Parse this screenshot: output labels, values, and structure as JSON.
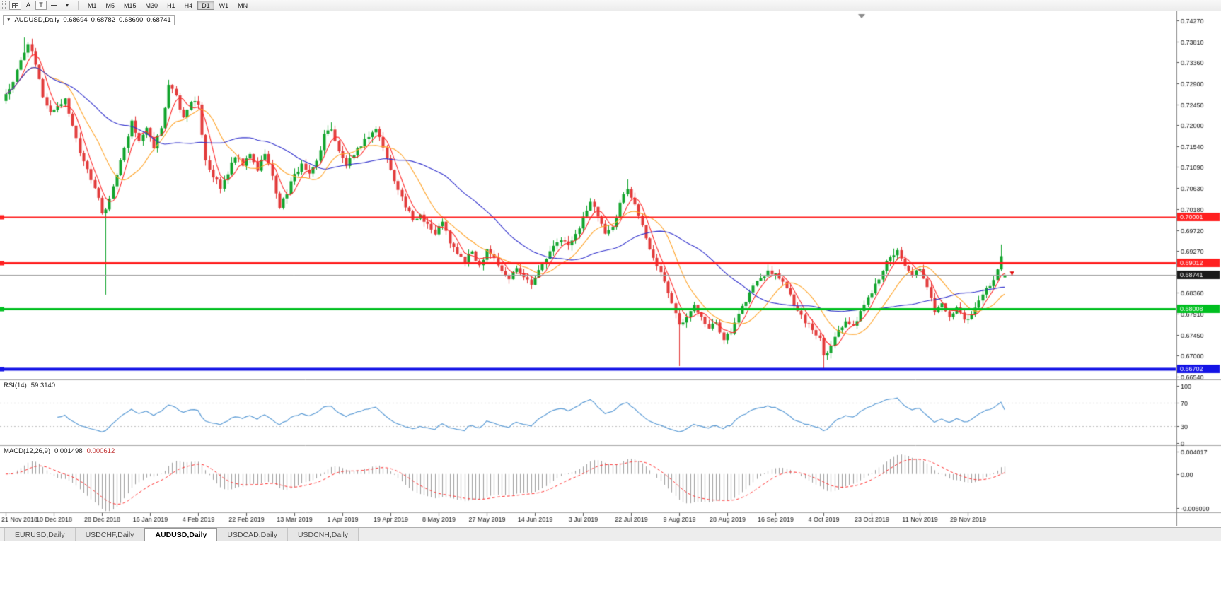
{
  "icons": {
    "caret_down": "▾",
    "dropdown_triangle": "▼"
  },
  "toolbar": {
    "a_label": "A",
    "t_label": "T",
    "timeframes": [
      "M1",
      "M5",
      "M15",
      "M30",
      "H1",
      "H4",
      "D1",
      "W1",
      "MN"
    ],
    "active_timeframe": "D1"
  },
  "header": {
    "symbol": "AUDUSD,Daily",
    "open": "0.68694",
    "high": "0.68782",
    "low": "0.68690",
    "close": "0.68741"
  },
  "tabs": {
    "items": [
      "EURUSD,Daily",
      "USDCHF,Daily",
      "AUDUSD,Daily",
      "USDCAD,Daily",
      "USDCNH,Daily"
    ],
    "active": "AUDUSD,Daily"
  },
  "chart_data": {
    "type": "candlestick",
    "symbol": "AUDUSD",
    "timeframe": "Daily",
    "quote": {
      "open": 0.68694,
      "high": 0.68782,
      "low": 0.6869,
      "close": 0.68741
    },
    "ylim": [
      0.7427,
      0.6654
    ],
    "y_ticks": [
      "0.74270",
      "0.73810",
      "0.73360",
      "0.72900",
      "0.72450",
      "0.72000",
      "0.71540",
      "0.71090",
      "0.70630",
      "0.70180",
      "0.69720",
      "0.69270",
      "0.68810",
      "0.68360",
      "0.67910",
      "0.67450",
      "0.67000",
      "0.66540"
    ],
    "x_labels": [
      "21 Nov 2018",
      "10 Dec 2018",
      "28 Dec 2018",
      "16 Jan 2019",
      "4 Feb 2019",
      "22 Feb 2019",
      "13 Mar 2019",
      "1 Apr 2019",
      "19 Apr 2019",
      "8 May 2019",
      "27 May 2019",
      "14 Jun 2019",
      "3 Jul 2019",
      "22 Jul 2019",
      "9 Aug 2019",
      "28 Aug 2019",
      "16 Sep 2019",
      "4 Oct 2019",
      "23 Oct 2019",
      "11 Nov 2019",
      "29 Nov 2019"
    ],
    "candles_per_label": 13,
    "candle_count": 271,
    "close_anchors": [
      [
        0,
        0.7268
      ],
      [
        2,
        0.7292
      ],
      [
        4,
        0.734
      ],
      [
        6,
        0.7378
      ],
      [
        8,
        0.733
      ],
      [
        10,
        0.7262
      ],
      [
        12,
        0.7228
      ],
      [
        14,
        0.7242
      ],
      [
        16,
        0.7256
      ],
      [
        18,
        0.72
      ],
      [
        20,
        0.7142
      ],
      [
        22,
        0.7106
      ],
      [
        24,
        0.7064
      ],
      [
        26,
        0.7008
      ],
      [
        27,
        0.7016
      ],
      [
        28,
        0.7042
      ],
      [
        30,
        0.7092
      ],
      [
        32,
        0.7152
      ],
      [
        34,
        0.7208
      ],
      [
        36,
        0.7166
      ],
      [
        38,
        0.7192
      ],
      [
        40,
        0.7148
      ],
      [
        42,
        0.7195
      ],
      [
        44,
        0.7288
      ],
      [
        46,
        0.7262
      ],
      [
        48,
        0.7215
      ],
      [
        50,
        0.7252
      ],
      [
        52,
        0.7242
      ],
      [
        54,
        0.7125
      ],
      [
        56,
        0.7088
      ],
      [
        58,
        0.7062
      ],
      [
        60,
        0.7095
      ],
      [
        62,
        0.713
      ],
      [
        64,
        0.7112
      ],
      [
        66,
        0.7136
      ],
      [
        68,
        0.7102
      ],
      [
        70,
        0.714
      ],
      [
        72,
        0.7088
      ],
      [
        74,
        0.7022
      ],
      [
        76,
        0.7052
      ],
      [
        78,
        0.7092
      ],
      [
        80,
        0.7116
      ],
      [
        82,
        0.7092
      ],
      [
        84,
        0.7122
      ],
      [
        86,
        0.718
      ],
      [
        88,
        0.7192
      ],
      [
        90,
        0.7142
      ],
      [
        92,
        0.7112
      ],
      [
        94,
        0.7132
      ],
      [
        96,
        0.7156
      ],
      [
        98,
        0.7176
      ],
      [
        100,
        0.7192
      ],
      [
        102,
        0.7152
      ],
      [
        104,
        0.7102
      ],
      [
        106,
        0.7062
      ],
      [
        108,
        0.7022
      ],
      [
        110,
        0.6992
      ],
      [
        112,
        0.7006
      ],
      [
        114,
        0.6986
      ],
      [
        116,
        0.6962
      ],
      [
        118,
        0.6992
      ],
      [
        120,
        0.6942
      ],
      [
        122,
        0.6922
      ],
      [
        124,
        0.6902
      ],
      [
        126,
        0.6926
      ],
      [
        128,
        0.6896
      ],
      [
        130,
        0.6932
      ],
      [
        132,
        0.6912
      ],
      [
        134,
        0.6882
      ],
      [
        136,
        0.6866
      ],
      [
        138,
        0.6892
      ],
      [
        140,
        0.6872
      ],
      [
        142,
        0.6856
      ],
      [
        144,
        0.6884
      ],
      [
        146,
        0.691
      ],
      [
        148,
        0.6936
      ],
      [
        150,
        0.6952
      ],
      [
        152,
        0.6938
      ],
      [
        154,
        0.6962
      ],
      [
        156,
        0.7002
      ],
      [
        158,
        0.7032
      ],
      [
        160,
        0.7002
      ],
      [
        162,
        0.6962
      ],
      [
        164,
        0.6978
      ],
      [
        166,
        0.7032
      ],
      [
        168,
        0.7062
      ],
      [
        170,
        0.703
      ],
      [
        172,
        0.698
      ],
      [
        174,
        0.693
      ],
      [
        176,
        0.6895
      ],
      [
        178,
        0.6862
      ],
      [
        180,
        0.6812
      ],
      [
        182,
        0.6768
      ],
      [
        184,
        0.6786
      ],
      [
        186,
        0.6812
      ],
      [
        188,
        0.6786
      ],
      [
        190,
        0.6758
      ],
      [
        192,
        0.6772
      ],
      [
        194,
        0.6736
      ],
      [
        196,
        0.6748
      ],
      [
        198,
        0.6788
      ],
      [
        200,
        0.6818
      ],
      [
        202,
        0.6852
      ],
      [
        204,
        0.6868
      ],
      [
        206,
        0.6886
      ],
      [
        208,
        0.6878
      ],
      [
        210,
        0.6862
      ],
      [
        212,
        0.6832
      ],
      [
        214,
        0.6796
      ],
      [
        216,
        0.6772
      ],
      [
        218,
        0.6756
      ],
      [
        220,
        0.6738
      ],
      [
        221,
        0.6702
      ],
      [
        223,
        0.6722
      ],
      [
        225,
        0.6756
      ],
      [
        227,
        0.6776
      ],
      [
        229,
        0.6762
      ],
      [
        231,
        0.6796
      ],
      [
        233,
        0.6826
      ],
      [
        235,
        0.6856
      ],
      [
        237,
        0.6886
      ],
      [
        239,
        0.6912
      ],
      [
        241,
        0.6928
      ],
      [
        243,
        0.6896
      ],
      [
        245,
        0.6872
      ],
      [
        247,
        0.6886
      ],
      [
        249,
        0.6846
      ],
      [
        251,
        0.6796
      ],
      [
        253,
        0.6812
      ],
      [
        255,
        0.6786
      ],
      [
        257,
        0.6802
      ],
      [
        259,
        0.6778
      ],
      [
        261,
        0.6786
      ],
      [
        263,
        0.6822
      ],
      [
        265,
        0.6846
      ],
      [
        267,
        0.6862
      ],
      [
        269,
        0.6918
      ],
      [
        270,
        0.68741
      ]
    ],
    "special_wicks": [
      {
        "i": 5,
        "high": 0.739
      },
      {
        "i": 27,
        "low": 0.6832
      },
      {
        "i": 44,
        "high": 0.7297
      },
      {
        "i": 88,
        "high": 0.7206
      },
      {
        "i": 168,
        "high": 0.7082
      },
      {
        "i": 182,
        "low": 0.6677
      },
      {
        "i": 206,
        "high": 0.6897
      },
      {
        "i": 221,
        "low": 0.667
      },
      {
        "i": 240,
        "high": 0.6932
      },
      {
        "i": 269,
        "high": 0.6941
      }
    ],
    "hlines": [
      {
        "price": 0.70001,
        "label": "0.70001",
        "color": "#ff2020",
        "width": 2
      },
      {
        "price": 0.69012,
        "label": "0.69012",
        "color": "#ff2020",
        "width": 3
      },
      {
        "price": 0.68008,
        "label": "0.68008",
        "color": "#00bf20",
        "width": 3
      },
      {
        "price": 0.66702,
        "label": "0.66702",
        "color": "#1414e6",
        "width": 4
      }
    ],
    "current_price": {
      "value": 0.68741,
      "label": "0.68741",
      "line_color": "#9a9a9a",
      "tag_bg": "#1a1a1a"
    },
    "arrow_marker": {
      "index": 272,
      "price": 0.6876,
      "color": "#e00000",
      "direction": "down"
    },
    "moving_averages": [
      {
        "period": 5,
        "color": "#ff2a2a"
      },
      {
        "period": 13,
        "color": "#ffa226"
      },
      {
        "period": 34,
        "color": "#3030cc"
      }
    ],
    "colors": {
      "up": "#11a42c",
      "down": "#e23b3b",
      "axis_text": "#111111"
    },
    "rsi": {
      "name": "RSI(14)",
      "value": "59.3140",
      "period": 14,
      "levels": [
        100,
        70,
        30,
        0
      ],
      "color": "#5b9bd5"
    },
    "macd": {
      "name": "MACD(12,26,9)",
      "value_main": "0.001498",
      "value_signal": "0.000612",
      "fast": 12,
      "slow": 26,
      "signal": 9,
      "axis_ticks": [
        "0.004017",
        "0.00",
        "-0.006090"
      ],
      "range": [
        0.004017,
        -0.00609
      ],
      "hist_color": "#9e9e9e",
      "signal_color": "#ff3030"
    }
  }
}
